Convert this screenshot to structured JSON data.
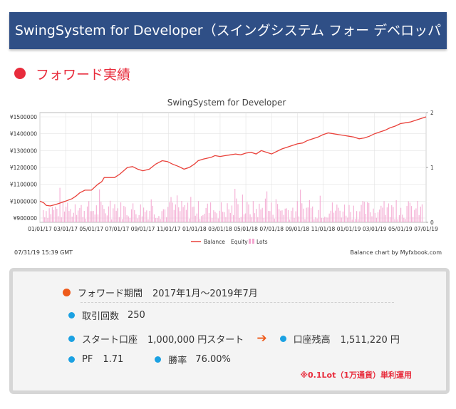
{
  "banner": {
    "title": "SwingSystem for Developer（スイングシステム フォー デベロッパー）"
  },
  "section": {
    "title": "フォワード実績"
  },
  "chart_data": {
    "type": "line",
    "title": "SwingSystem for Developer",
    "x_tick_labels": [
      "01/01/17",
      "03/01/17",
      "05/01/17",
      "07/01/17",
      "09/01/17",
      "11/01/17",
      "01/01/18",
      "03/01/18",
      "05/01/18",
      "07/01/18",
      "09/01/18",
      "11/01/18",
      "01/01/19",
      "03/01/19",
      "05/01/19",
      "07/01/19"
    ],
    "y_left_ticks": [
      "¥900000",
      "¥1000000",
      "¥1100000",
      "¥1200000",
      "¥1300000",
      "¥1400000",
      "¥1500000"
    ],
    "y_left_range": [
      900000,
      1500000
    ],
    "y_right_ticks": [
      "0",
      "1",
      "2"
    ],
    "y_right_range": [
      0,
      2
    ],
    "legend": [
      "Balance",
      "Equity",
      "Lots"
    ],
    "legend_position": "bottom-center",
    "grid": true,
    "colors": {
      "balance": "#e9413a",
      "lots": "#f3a6d0",
      "grid": "#e3e3e3"
    },
    "series": [
      {
        "name": "Balance",
        "x": [
          0,
          0.3,
          0.5,
          0.8,
          1.2,
          1.6,
          2.0,
          2.5,
          2.8,
          3.1,
          3.5,
          4.0,
          4.5,
          4.8,
          5.0,
          5.4,
          5.8,
          6.2,
          6.8,
          7.2,
          7.6,
          8.0,
          8.5,
          9.0,
          9.5,
          9.9,
          10.3,
          10.8,
          11.2,
          11.6,
          12.0,
          12.3,
          12.7,
          13.0,
          13.3,
          13.6,
          14.0,
          14.4,
          14.8,
          15.2,
          15.6,
          16.0,
          16.4,
          16.8,
          17.2,
          17.6,
          18.0,
          18.4,
          18.8,
          19.2,
          19.6,
          20.0,
          20.4,
          20.8,
          21.2,
          21.6,
          22.0,
          22.4,
          22.8,
          23.2,
          23.6,
          24.0,
          24.4,
          24.8,
          25.2,
          25.6,
          26.0,
          26.4,
          26.8,
          27.2,
          27.6,
          28.0,
          28.4,
          28.8,
          29.2,
          29.6,
          30.0
        ],
        "y": [
          1000000,
          990000,
          975000,
          972000,
          980000,
          990000,
          1000000,
          1015000,
          1030000,
          1050000,
          1065000,
          1065000,
          1100000,
          1115000,
          1140000,
          1140000,
          1140000,
          1160000,
          1200000,
          1205000,
          1190000,
          1180000,
          1190000,
          1220000,
          1240000,
          1235000,
          1220000,
          1205000,
          1190000,
          1200000,
          1220000,
          1240000,
          1250000,
          1255000,
          1260000,
          1270000,
          1265000,
          1270000,
          1275000,
          1280000,
          1275000,
          1285000,
          1290000,
          1280000,
          1300000,
          1290000,
          1280000,
          1295000,
          1310000,
          1320000,
          1330000,
          1340000,
          1345000,
          1360000,
          1370000,
          1380000,
          1395000,
          1405000,
          1400000,
          1395000,
          1390000,
          1385000,
          1380000,
          1370000,
          1375000,
          1385000,
          1400000,
          1410000,
          1420000,
          1435000,
          1445000,
          1460000,
          1465000,
          1470000,
          1480000,
          1490000,
          1500000
        ]
      }
    ],
    "lots_note": "Lots bars mostly 0.1–0.6 lots, scattered across the whole period"
  },
  "footer": {
    "timestamp": "07/31/19 15:39 GMT",
    "credit": "Balance chart  by Myfxbook.com"
  },
  "stats": {
    "period_label": "フォワード期間",
    "period_value": "2017年1月～2019年7月",
    "trades_label": "取引回数",
    "trades_value": "250",
    "start_label": "スタート口座",
    "start_value": "1,000,000 円スタート",
    "balance_label": "口座残高",
    "balance_value": "1,511,220 円",
    "pf_label": "PF",
    "pf_value": "1.71",
    "winrate_label": "勝率",
    "winrate_value": "76.00%",
    "note": "※0.1Lot（1万通貨）単利運用",
    "arrow": "➔"
  }
}
